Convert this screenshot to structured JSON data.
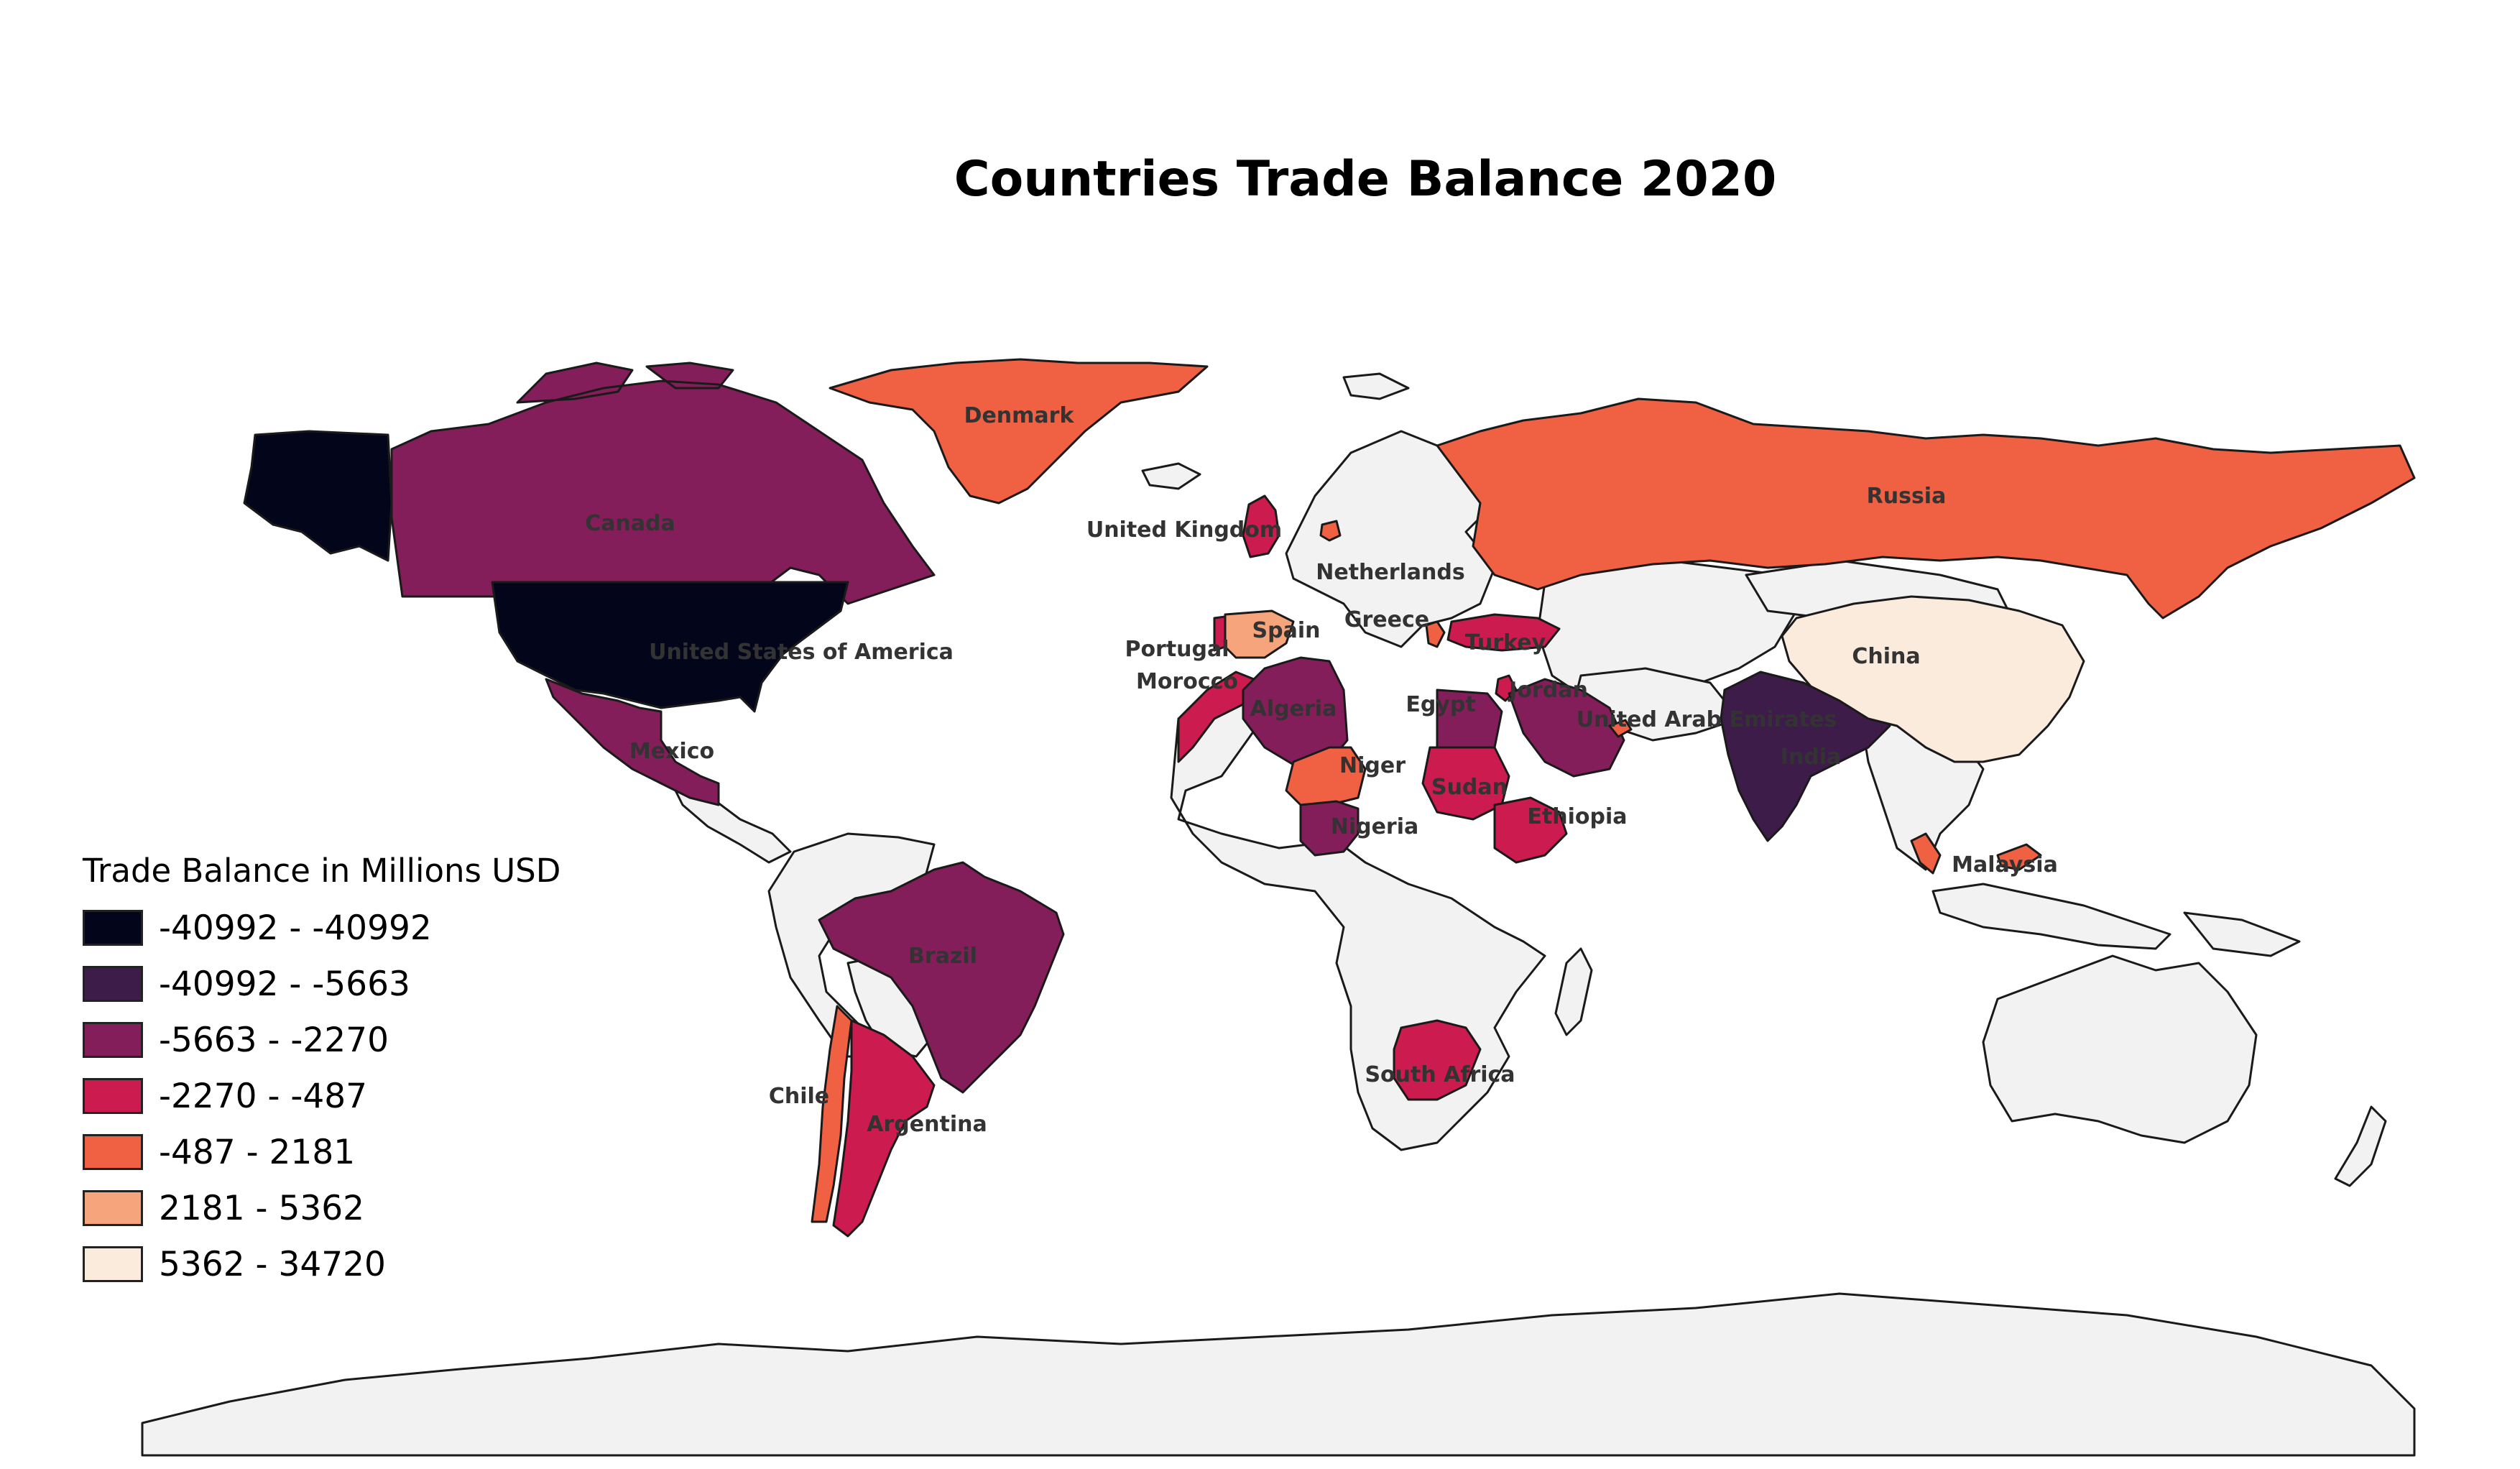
{
  "title": "Countries Trade Balance 2020",
  "legend": {
    "title": "Trade Balance in Millions USD",
    "classes": [
      {
        "label": "-40992 - -40992",
        "color": "#03051a"
      },
      {
        "label": "-40992 - -5663",
        "color": "#3e1c49"
      },
      {
        "label": "-5663 - -2270",
        "color": "#841e5a"
      },
      {
        "label": "-2270 - -487",
        "color": "#cb1b4f"
      },
      {
        "label": "-487 - 2181",
        "color": "#f06043"
      },
      {
        "label": "2181 - 5362",
        "color": "#f6a47c"
      },
      {
        "label": "5362 - 34720",
        "color": "#faebdd"
      }
    ]
  },
  "colors": {
    "no_data": "#f2f2f2",
    "border": "#1a1a1a",
    "label_text": "#333333"
  },
  "countries": [
    {
      "name": "Canada",
      "label": "Canada",
      "class": 2
    },
    {
      "name": "United States of America",
      "label": "United States of America",
      "class": 0
    },
    {
      "name": "Mexico",
      "label": "Mexico",
      "class": 2
    },
    {
      "name": "Denmark",
      "label": "Denmark",
      "class": 4
    },
    {
      "name": "Brazil",
      "label": "Brazil",
      "class": 2
    },
    {
      "name": "Chile",
      "label": "Chile",
      "class": 4
    },
    {
      "name": "Argentina",
      "label": "Argentina",
      "class": 3
    },
    {
      "name": "United Kingdom",
      "label": "United Kingdom",
      "class": 3
    },
    {
      "name": "Netherlands",
      "label": "Netherlands",
      "class": 4
    },
    {
      "name": "Portugal",
      "label": "Portugal",
      "class": 3
    },
    {
      "name": "Spain",
      "label": "Spain",
      "class": 5
    },
    {
      "name": "Morocco",
      "label": "Morocco",
      "class": 3
    },
    {
      "name": "Algeria",
      "label": "Algeria",
      "class": 2
    },
    {
      "name": "Niger",
      "label": "Niger",
      "class": 4
    },
    {
      "name": "Nigeria",
      "label": "Nigeria",
      "class": 2
    },
    {
      "name": "Egypt",
      "label": "Egypt",
      "class": 2
    },
    {
      "name": "Sudan",
      "label": "Sudan",
      "class": 3
    },
    {
      "name": "Ethiopia",
      "label": "Ethiopia",
      "class": 3
    },
    {
      "name": "South Africa",
      "label": "South Africa",
      "class": 3
    },
    {
      "name": "Greece",
      "label": "Greece",
      "class": 4
    },
    {
      "name": "Turkey",
      "label": "Turkey",
      "class": 3
    },
    {
      "name": "Jordan",
      "label": "Jordan",
      "class": 3
    },
    {
      "name": "Saudi Arabia",
      "label": "",
      "class": 2
    },
    {
      "name": "United Arab Emirates",
      "label": "United Arab Emirates",
      "class": 4
    },
    {
      "name": "India",
      "label": "India",
      "class": 1
    },
    {
      "name": "Russia",
      "label": "Russia",
      "class": 4
    },
    {
      "name": "China",
      "label": "China",
      "class": 6
    },
    {
      "name": "Malaysia",
      "label": "Malaysia",
      "class": 4
    }
  ]
}
